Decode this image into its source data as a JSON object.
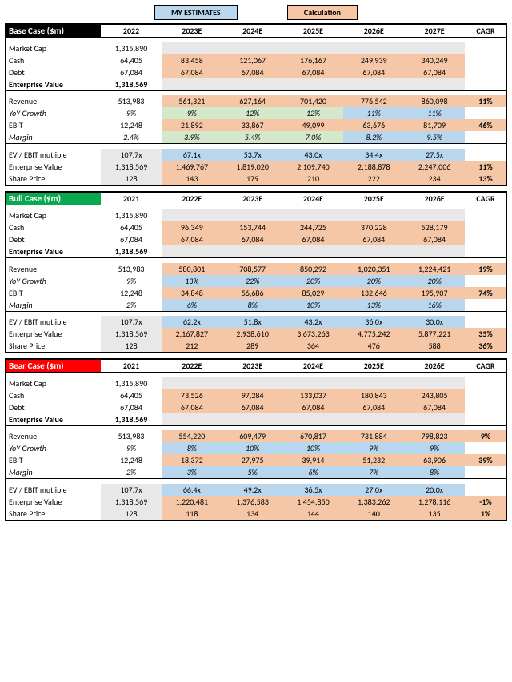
{
  "colors": {
    "estimates": "#b8d6ee",
    "calc": "#f6c7a6",
    "growth": "#d4e8cc",
    "grey": "#e8e8e8",
    "black": "#000000",
    "green": "#0aa84f",
    "red": "#ff0000"
  },
  "legend": {
    "estimates": "MY ESTIMATES",
    "calc": "Calculation"
  },
  "row_labels": {
    "mcap": "Market Cap",
    "cash": "Cash",
    "debt": "Debt",
    "ev": "Enterprise Value",
    "rev": "Revenue",
    "yoy": "YoY Growth",
    "ebit": "EBIT",
    "margin": "Margin",
    "mult": "EV / EBIT mutliple",
    "ev2": "Enterprise Value",
    "price": "Share Price"
  },
  "cagr_label": "CAGR",
  "scenarios": [
    {
      "title": "Base Case ($m)",
      "title_bg": "#000000",
      "years": [
        "2022",
        "2023E",
        "2024E",
        "2025E",
        "2026E",
        "2027E"
      ],
      "mcap": [
        "1,315,890",
        "",
        "",
        "",
        "",
        ""
      ],
      "cash": [
        "64,405",
        "83,458",
        "121,067",
        "176,167",
        "249,939",
        "340,249"
      ],
      "debt": [
        "67,084",
        "67,084",
        "67,084",
        "67,084",
        "67,084",
        "67,084"
      ],
      "ev": [
        "1,318,569",
        "",
        "",
        "",
        "",
        ""
      ],
      "rev": [
        "513,983",
        "561,321",
        "627,164",
        "701,420",
        "776,542",
        "860,098"
      ],
      "yoy": [
        "9%",
        "9%",
        "12%",
        "12%",
        "11%",
        "11%"
      ],
      "ebit": [
        "12,248",
        "21,892",
        "33,867",
        "49,099",
        "63,676",
        "81,709"
      ],
      "margin": [
        "2.4%",
        "3.9%",
        "5.4%",
        "7.0%",
        "8.2%",
        "9.5%"
      ],
      "mult": [
        "107.7x",
        "67.1x",
        "53.7x",
        "43.0x",
        "34.4x",
        "27.5x"
      ],
      "ev2": [
        "1,318,569",
        "1,469,767",
        "1,819,020",
        "2,109,740",
        "2,188,878",
        "2,247,006"
      ],
      "price": [
        "128",
        "143",
        "179",
        "210",
        "222",
        "234"
      ],
      "cagr": {
        "rev": "11%",
        "ebit": "46%",
        "ev2": "11%",
        "price": "13%"
      },
      "growth_cols": [
        1,
        2,
        3
      ],
      "est_cols": [
        4,
        5
      ]
    },
    {
      "title": "Bull Case ($m)",
      "title_bg": "#0aa84f",
      "years": [
        "2021",
        "2022E",
        "2023E",
        "2024E",
        "2025E",
        "2026E"
      ],
      "mcap": [
        "1,315,890",
        "",
        "",
        "",
        "",
        ""
      ],
      "cash": [
        "64,405",
        "96,349",
        "153,744",
        "244,725",
        "370,228",
        "528,179"
      ],
      "debt": [
        "67,084",
        "67,084",
        "67,084",
        "67,084",
        "67,084",
        "67,084"
      ],
      "ev": [
        "1,318,569",
        "",
        "",
        "",
        "",
        ""
      ],
      "rev": [
        "513,983",
        "580,801",
        "708,577",
        "850,292",
        "1,020,351",
        "1,224,421"
      ],
      "yoy": [
        "9%",
        "13%",
        "22%",
        "20%",
        "20%",
        "20%"
      ],
      "ebit": [
        "12,248",
        "34,848",
        "56,686",
        "85,029",
        "132,646",
        "195,907"
      ],
      "margin": [
        "2%",
        "6%",
        "8%",
        "10%",
        "13%",
        "16%"
      ],
      "mult": [
        "107.7x",
        "62.2x",
        "51.8x",
        "43.2x",
        "36.0x",
        "30.0x"
      ],
      "ev2": [
        "1,318,569",
        "2,167,827",
        "2,938,610",
        "3,673,263",
        "4,775,242",
        "5,877,221"
      ],
      "price": [
        "128",
        "212",
        "289",
        "364",
        "476",
        "588"
      ],
      "cagr": {
        "rev": "19%",
        "ebit": "74%",
        "ev2": "35%",
        "price": "36%"
      },
      "growth_cols": [],
      "est_cols": [
        1,
        2,
        3,
        4,
        5
      ]
    },
    {
      "title": "Bear Case ($m)",
      "title_bg": "#ff0000",
      "years": [
        "2021",
        "2022E",
        "2023E",
        "2024E",
        "2025E",
        "2026E"
      ],
      "mcap": [
        "1,315,890",
        "",
        "",
        "",
        "",
        ""
      ],
      "cash": [
        "64,405",
        "73,526",
        "97,284",
        "133,037",
        "180,843",
        "243,805"
      ],
      "debt": [
        "67,084",
        "67,084",
        "67,084",
        "67,084",
        "67,084",
        "67,084"
      ],
      "ev": [
        "1,318,569",
        "",
        "",
        "",
        "",
        ""
      ],
      "rev": [
        "513,983",
        "554,220",
        "609,479",
        "670,817",
        "731,884",
        "798,823"
      ],
      "yoy": [
        "9%",
        "8%",
        "10%",
        "10%",
        "9%",
        "9%"
      ],
      "ebit": [
        "12,248",
        "18,372",
        "27,975",
        "39,914",
        "51,232",
        "63,906"
      ],
      "margin": [
        "2%",
        "3%",
        "5%",
        "6%",
        "7%",
        "8%"
      ],
      "mult": [
        "107.7x",
        "66.4x",
        "49.2x",
        "36.5x",
        "27.0x",
        "20.0x"
      ],
      "ev2": [
        "1,318,569",
        "1,220,481",
        "1,376,583",
        "1,454,850",
        "1,383,262",
        "1,278,116"
      ],
      "price": [
        "128",
        "118",
        "134",
        "144",
        "140",
        "135"
      ],
      "cagr": {
        "rev": "9%",
        "ebit": "39%",
        "ev2": "-1%",
        "price": "1%"
      },
      "growth_cols": [],
      "est_cols": [
        1,
        2,
        3,
        4,
        5
      ]
    }
  ]
}
